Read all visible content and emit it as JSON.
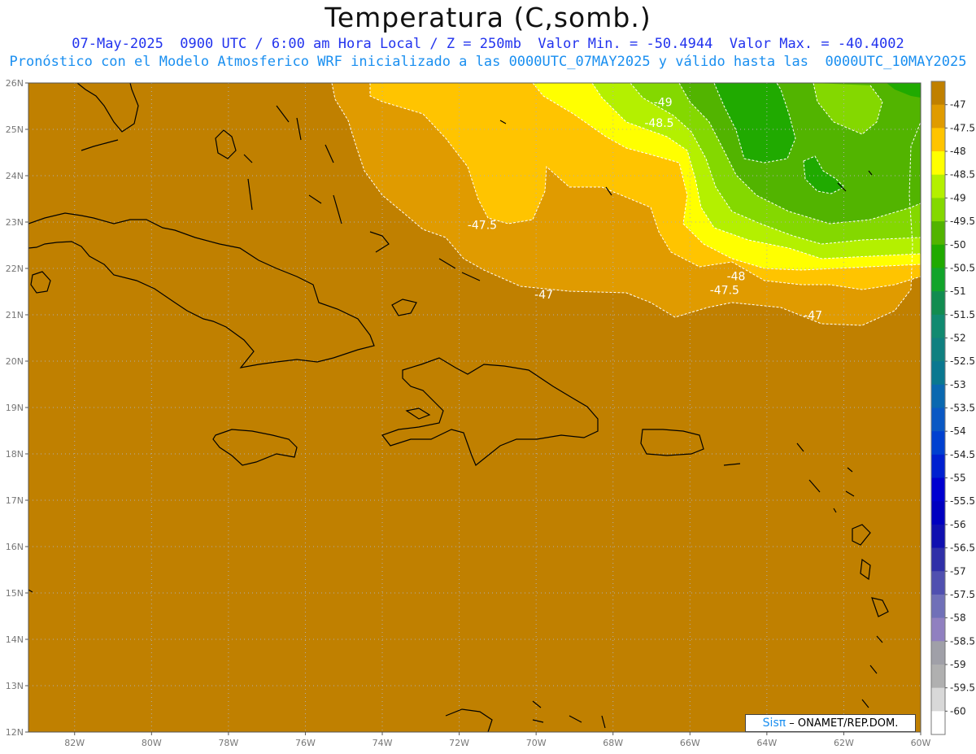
{
  "header": {
    "title": "Temperatura (C,somb.)",
    "line1": "07-May-2025  0900 UTC / 6:00 am Hora Local / Z = 250mb  Valor Min. = -50.4944  Valor Max. = -40.4002",
    "line2": "Pronóstico con el Modelo Atmosferico WRF inicializado a las 0000UTC_07MAY2025 y válido hasta las  0000UTC_10MAY2025"
  },
  "map": {
    "lat_labels": [
      "26N",
      "25N",
      "24N",
      "23N",
      "22N",
      "21N",
      "20N",
      "19N",
      "18N",
      "17N",
      "16N",
      "15N",
      "14N",
      "13N",
      "12N"
    ],
    "lon_labels": [
      "82W",
      "80W",
      "78W",
      "76W",
      "74W",
      "72W",
      "70W",
      "68W",
      "66W",
      "64W",
      "62W",
      "60W"
    ],
    "lat_range": [
      12,
      26
    ],
    "lon_range": [
      -83.2,
      -60
    ],
    "grid": true,
    "contour_labels": [
      {
        "text": "-49",
        "lon": -66.7,
        "lat": 25.5
      },
      {
        "text": "-48.5",
        "lon": -66.8,
        "lat": 25.05
      },
      {
        "text": "-47.5",
        "lon": -71.4,
        "lat": 22.85
      },
      {
        "text": "-48",
        "lon": -64.8,
        "lat": 21.75
      },
      {
        "text": "-47.5",
        "lon": -65.1,
        "lat": 21.45
      },
      {
        "text": "-47",
        "lon": -69.8,
        "lat": 21.35
      },
      {
        "text": "-47",
        "lon": -62.8,
        "lat": 20.9
      }
    ]
  },
  "colorbar": {
    "labels": [
      "-47",
      "-47.5",
      "-48",
      "-48.5",
      "-49",
      "-49.5",
      "-50",
      "-50.5",
      "-51",
      "-51.5",
      "-52",
      "-52.5",
      "-53",
      "-53.5",
      "-54",
      "-54.5",
      "-55",
      "-55.5",
      "-56",
      "-56.5",
      "-57",
      "-57.5",
      "-58",
      "-58.5",
      "-59",
      "-59.5",
      "-60"
    ],
    "colors": [
      "#c08000",
      "#e09b00",
      "#ffc400",
      "#ffff00",
      "#b4f000",
      "#84d800",
      "#52b400",
      "#20aa00",
      "#12a42a",
      "#128c50",
      "#118a70",
      "#108080",
      "#0a7890",
      "#0a68b0",
      "#0a58c4",
      "#0040d0",
      "#0020d0",
      "#0000d0",
      "#0000c0",
      "#1010b0",
      "#3030a8",
      "#5050b0",
      "#7070b8",
      "#9080c0",
      "#a0a0a8",
      "#b0b0b0",
      "#d8d8d8",
      "#ffffff"
    ]
  },
  "credit": {
    "brand": "Sisπ",
    "text": " – ONAMET/REP.DOM."
  }
}
